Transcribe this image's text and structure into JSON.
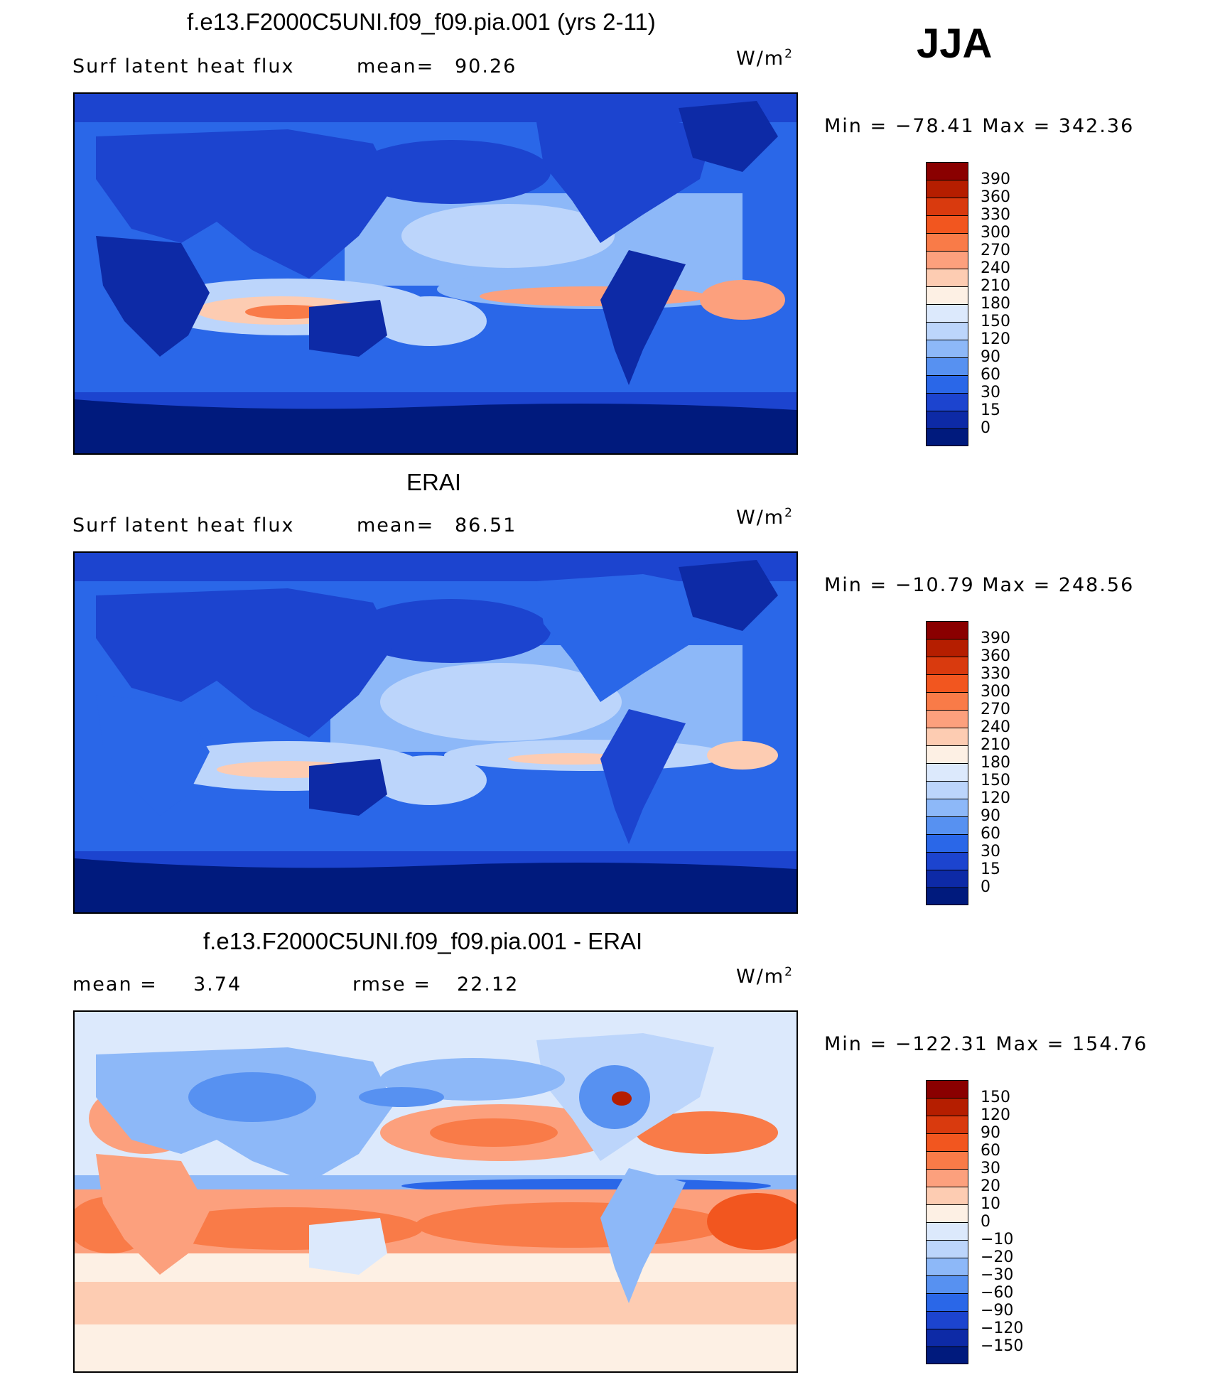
{
  "season": "JJA",
  "panels": [
    {
      "title": "f.e13.F2000C5UNI.f09_f09.pia.001 (yrs 2-11)",
      "left_label": "Surf latent heat flux",
      "stat_label": "mean=",
      "stat_value": "90.26",
      "unit_main": "W/m",
      "unit_sup": "2",
      "minmax": "Min = −78.41 Max = 342.36",
      "levels": [
        "390",
        "360",
        "330",
        "300",
        "270",
        "240",
        "210",
        "180",
        "150",
        "120",
        "90",
        "60",
        "30",
        "15",
        "0"
      ],
      "colors": [
        "#8a0000",
        "#b51e00",
        "#d93a0e",
        "#f2561f",
        "#f97b48",
        "#fca07d",
        "#fdccb2",
        "#fdf0e4",
        "#dce9fc",
        "#bcd5fb",
        "#8db8f8",
        "#5791f1",
        "#2a67e8",
        "#1c44cf",
        "#0d2aa6",
        "#001a7d"
      ]
    },
    {
      "title": "ERAI",
      "left_label": "Surf latent heat flux",
      "stat_label": "mean=",
      "stat_value": "86.51",
      "unit_main": "W/m",
      "unit_sup": "2",
      "minmax": "Min = −10.79 Max = 248.56",
      "levels": [
        "390",
        "360",
        "330",
        "300",
        "270",
        "240",
        "210",
        "180",
        "150",
        "120",
        "90",
        "60",
        "30",
        "15",
        "0"
      ],
      "colors": [
        "#8a0000",
        "#b51e00",
        "#d93a0e",
        "#f2561f",
        "#f97b48",
        "#fca07d",
        "#fdccb2",
        "#fdf0e4",
        "#dce9fc",
        "#bcd5fb",
        "#8db8f8",
        "#5791f1",
        "#2a67e8",
        "#1c44cf",
        "#0d2aa6",
        "#001a7d"
      ]
    },
    {
      "title": "f.e13.F2000C5UNI.f09_f09.pia.001 - ERAI",
      "left_label": "mean =",
      "left_value": "3.74",
      "stat_label": "rmse =",
      "stat_value": "22.12",
      "unit_main": "W/m",
      "unit_sup": "2",
      "minmax": "Min = −122.31 Max = 154.76",
      "levels": [
        "150",
        "120",
        "90",
        "60",
        "30",
        "20",
        "10",
        "0",
        "−10",
        "−20",
        "−30",
        "−60",
        "−90",
        "−120",
        "−150"
      ],
      "colors": [
        "#8a0000",
        "#b51e00",
        "#d93a0e",
        "#f2561f",
        "#f97b48",
        "#fca07d",
        "#fdccb2",
        "#fdf0e4",
        "#dce9fc",
        "#bcd5fb",
        "#8db8f8",
        "#5791f1",
        "#2a67e8",
        "#1c44cf",
        "#0d2aa6",
        "#001a7d"
      ]
    }
  ]
}
